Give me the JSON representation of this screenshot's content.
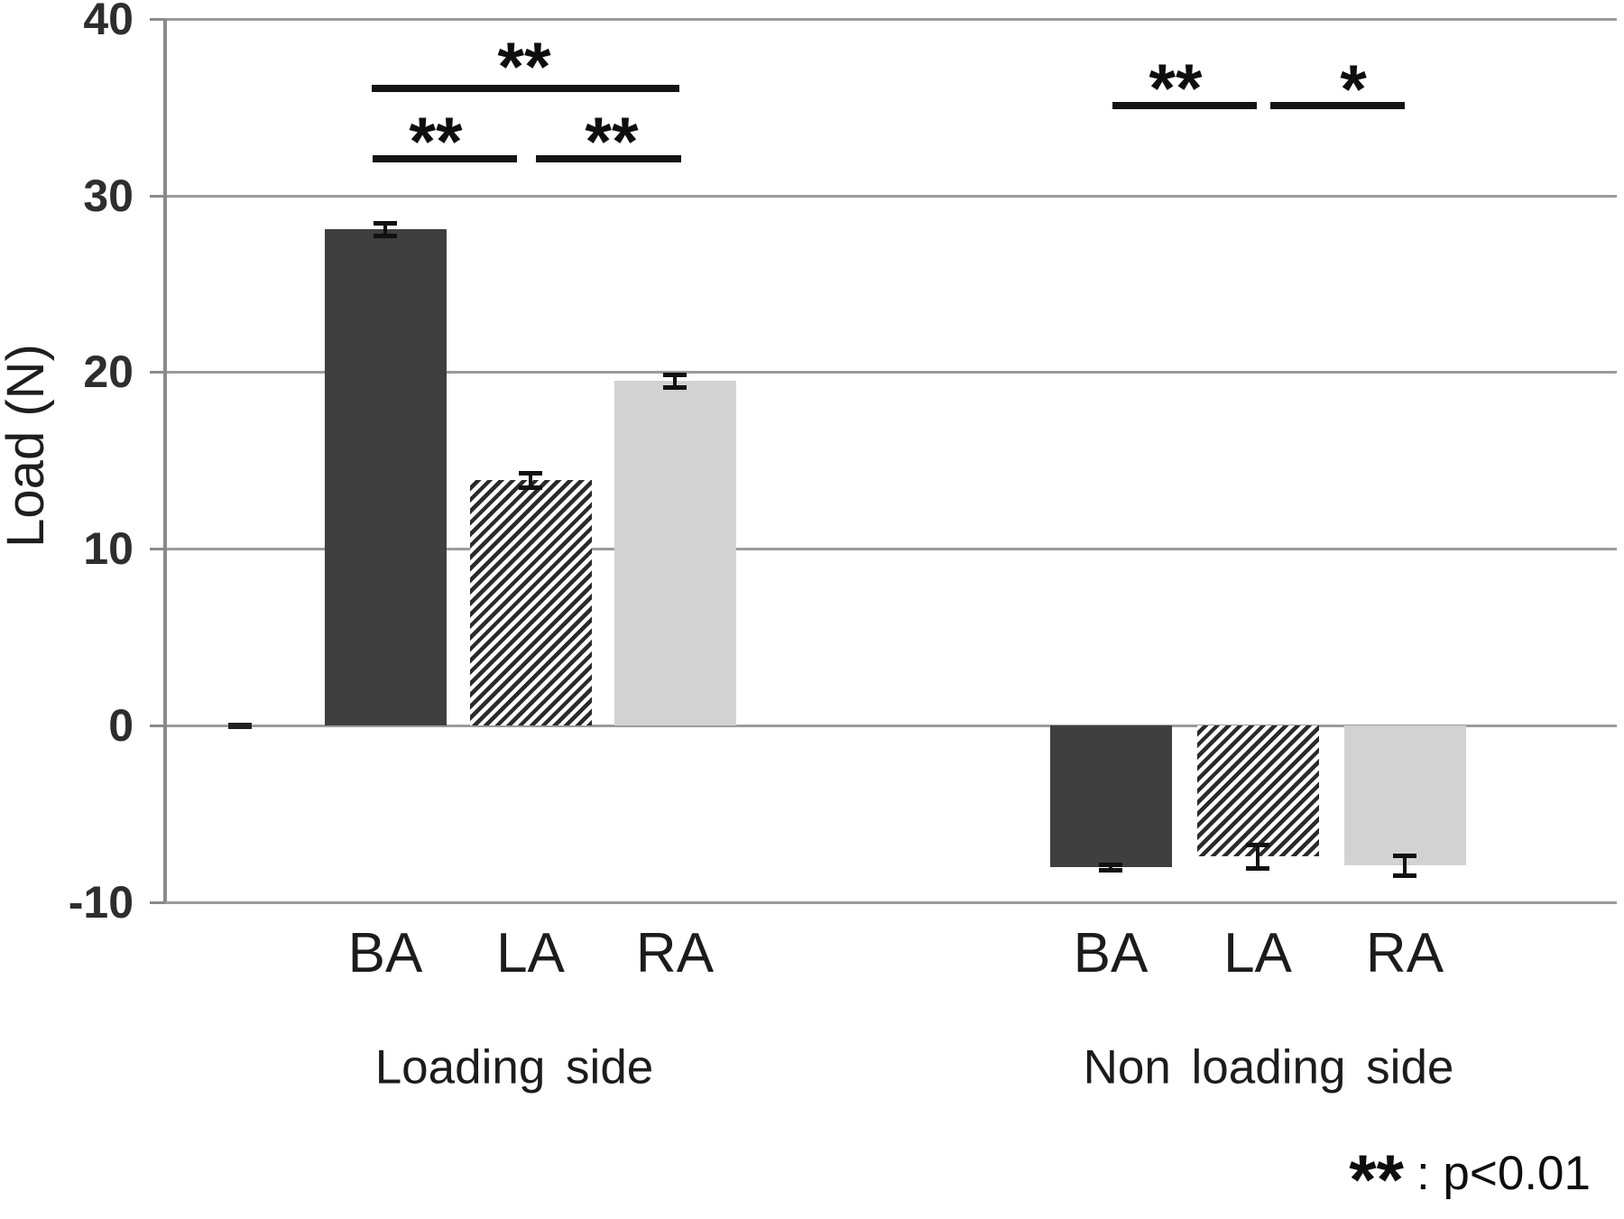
{
  "chart_data": {
    "type": "bar",
    "title": "",
    "ylabel": "Load (N)",
    "ylim": [
      -10,
      40
    ],
    "yticks": [
      40,
      30,
      20,
      10,
      0,
      -10
    ],
    "ytick_labels": [
      "40",
      "30",
      "20",
      "10",
      "0",
      "-10"
    ],
    "grid": "horizontal",
    "legend_position": "bottom-right",
    "groups": [
      {
        "label": "Loading side",
        "categories": [
          "BA",
          "LA",
          "RA"
        ],
        "values": [
          28.1,
          13.9,
          19.5
        ],
        "errors": [
          0.35,
          0.4,
          0.35
        ]
      },
      {
        "label": "Non loading side",
        "categories": [
          "BA",
          "LA",
          "RA"
        ],
        "values": [
          -8.0,
          -7.4,
          -7.9
        ],
        "errors": [
          0.15,
          0.65,
          0.55
        ]
      }
    ],
    "series_styles": [
      {
        "category": "BA",
        "pattern": "solid",
        "color": "#3f3f3f"
      },
      {
        "category": "LA",
        "pattern": "diagonal-hatch",
        "color": "#2b2b2b"
      },
      {
        "category": "RA",
        "pattern": "solid",
        "color": "#d2d2d2"
      }
    ],
    "significance": [
      {
        "group": "Loading side",
        "between": [
          "BA",
          "RA"
        ],
        "stars": "**"
      },
      {
        "group": "Loading side",
        "between": [
          "BA",
          "LA"
        ],
        "stars": "**"
      },
      {
        "group": "Loading side",
        "between": [
          "LA",
          "RA"
        ],
        "stars": "**"
      },
      {
        "group": "Non loading side",
        "between": [
          "BA",
          "LA"
        ],
        "stars": "**"
      },
      {
        "group": "Non loading side",
        "between": [
          "LA",
          "RA"
        ],
        "stars": "*"
      }
    ],
    "legend": {
      "stars": "**",
      "text": ": p<0.01"
    }
  }
}
